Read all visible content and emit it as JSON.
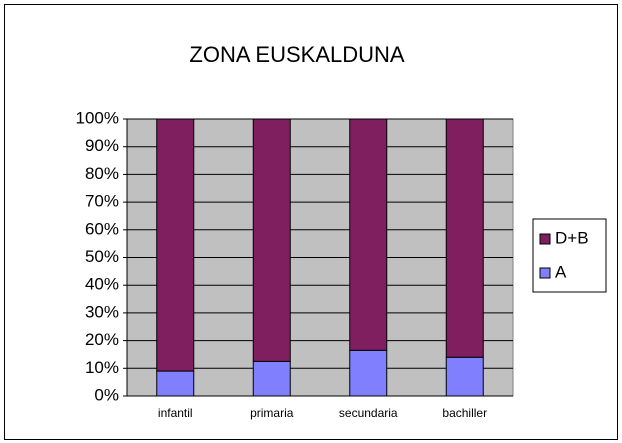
{
  "chart_data": {
    "type": "stacked_bar_100",
    "title": "ZONA EUSKALDUNA",
    "categories": [
      "infantil",
      "primaria",
      "secundaria",
      "bachiller"
    ],
    "series": [
      {
        "name": "A",
        "color": "#8080ff",
        "values": [
          9,
          12.5,
          16.5,
          14
        ]
      },
      {
        "name": "D+B",
        "color": "#7f1f5f",
        "values": [
          91,
          87.5,
          83.5,
          86
        ]
      }
    ],
    "ylim": [
      0,
      100
    ],
    "yticks": [
      {
        "value": 0,
        "label": "0%"
      },
      {
        "value": 10,
        "label": "10%"
      },
      {
        "value": 20,
        "label": "20%"
      },
      {
        "value": 30,
        "label": "30%"
      },
      {
        "value": 40,
        "label": "40%"
      },
      {
        "value": 50,
        "label": "50%"
      },
      {
        "value": 60,
        "label": "60%"
      },
      {
        "value": 70,
        "label": "70%"
      },
      {
        "value": 80,
        "label": "80%"
      },
      {
        "value": 90,
        "label": "90%"
      },
      {
        "value": 100,
        "label": "100%"
      }
    ],
    "grid": true,
    "legend": "right"
  }
}
